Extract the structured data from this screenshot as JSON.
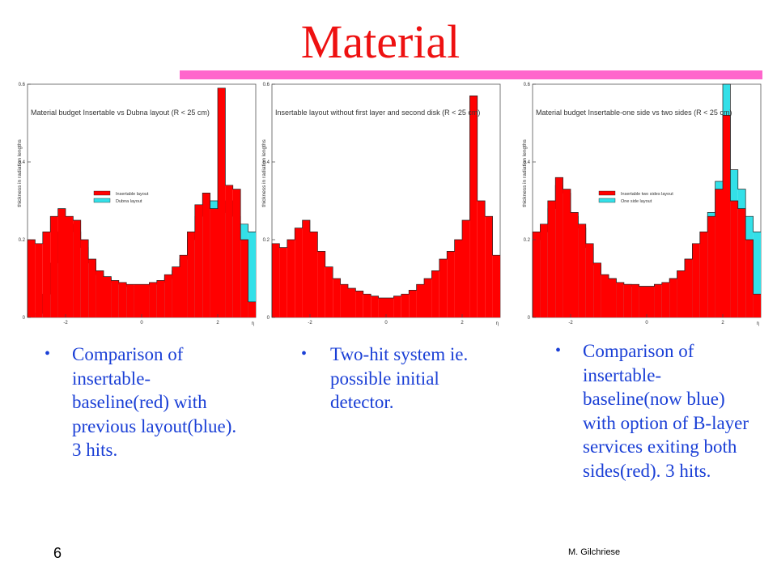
{
  "slide": {
    "title": "Material",
    "page_number": "6",
    "author": "M. Gilchriese",
    "bullets": [
      "Comparison of insertable-baseline(red) with previous layout(blue). 3 hits.",
      "Two-hit system ie. possible initial detector.",
      "Comparison of insertable-baseline(now blue) with option of B-layer services exiting both sides(red). 3 hits."
    ]
  },
  "colors": {
    "red": "#ff0000",
    "blue": "#33e0e8",
    "title": "#ee1111",
    "rule": "#ff66cc",
    "bullet_text": "#1a3fd6"
  },
  "chart_data": [
    {
      "type": "histogram",
      "title": "Material budget Insertable vs Dubna layout (R < 25 cm)",
      "ylabel": "thickness in radiation lengths",
      "xlabel": "η",
      "xlim": [
        -3,
        3
      ],
      "ylim": [
        0,
        0.6
      ],
      "x_ticks": [
        "-2",
        "0",
        "2"
      ],
      "y_ticks": [
        "0",
        "0.2",
        "0.4",
        "0.6"
      ],
      "legend_position": "center-left",
      "series": [
        {
          "name": "Insertable layout",
          "color": "red",
          "x": [
            -2.9,
            -2.7,
            -2.5,
            -2.3,
            -2.1,
            -1.9,
            -1.7,
            -1.5,
            -1.3,
            -1.1,
            -0.9,
            -0.7,
            -0.5,
            -0.3,
            -0.1,
            0.1,
            0.3,
            0.5,
            0.7,
            0.9,
            1.1,
            1.3,
            1.5,
            1.7,
            1.9,
            2.1,
            2.3,
            2.5,
            2.7,
            2.9
          ],
          "values": [
            0.2,
            0.19,
            0.22,
            0.26,
            0.28,
            0.26,
            0.25,
            0.2,
            0.15,
            0.12,
            0.105,
            0.095,
            0.09,
            0.085,
            0.085,
            0.085,
            0.09,
            0.095,
            0.11,
            0.13,
            0.16,
            0.22,
            0.29,
            0.32,
            0.28,
            0.59,
            0.34,
            0.33,
            0.2,
            0.04
          ]
        },
        {
          "name": "Dubna layout",
          "color": "blue",
          "x": [
            -2.9,
            -2.7,
            -2.5,
            -2.3,
            -2.1,
            -1.9,
            -1.7,
            -1.5,
            -1.3,
            -1.1,
            -0.9,
            -0.7,
            -0.5,
            -0.3,
            -0.1,
            0.1,
            0.3,
            0.5,
            0.7,
            0.9,
            1.1,
            1.3,
            1.5,
            1.7,
            1.9,
            2.1,
            2.3,
            2.5,
            2.7,
            2.9
          ],
          "values": [
            0.01,
            0.01,
            0.06,
            0.14,
            0.22,
            0.24,
            0.22,
            0.18,
            0.14,
            0.11,
            0.1,
            0.09,
            0.085,
            0.08,
            0.08,
            0.08,
            0.085,
            0.09,
            0.1,
            0.12,
            0.15,
            0.2,
            0.26,
            0.29,
            0.3,
            0.27,
            0.3,
            0.26,
            0.24,
            0.22
          ]
        }
      ]
    },
    {
      "type": "histogram",
      "title": "Insertable layout without first layer and second disk (R < 25 cm)",
      "ylabel": "thickness in radiation lengths",
      "xlabel": "η",
      "xlim": [
        -3,
        3
      ],
      "ylim": [
        0,
        0.6
      ],
      "x_ticks": [
        "-2",
        "0",
        "2"
      ],
      "y_ticks": [
        "0",
        "0.2",
        "0.4",
        "0.6"
      ],
      "series": [
        {
          "name": "",
          "color": "red",
          "x": [
            -2.9,
            -2.7,
            -2.5,
            -2.3,
            -2.1,
            -1.9,
            -1.7,
            -1.5,
            -1.3,
            -1.1,
            -0.9,
            -0.7,
            -0.5,
            -0.3,
            -0.1,
            0.1,
            0.3,
            0.5,
            0.7,
            0.9,
            1.1,
            1.3,
            1.5,
            1.7,
            1.9,
            2.1,
            2.3,
            2.5,
            2.7,
            2.9
          ],
          "values": [
            0.19,
            0.18,
            0.2,
            0.23,
            0.25,
            0.22,
            0.17,
            0.13,
            0.1,
            0.085,
            0.075,
            0.068,
            0.06,
            0.055,
            0.05,
            0.05,
            0.055,
            0.06,
            0.07,
            0.085,
            0.1,
            0.12,
            0.15,
            0.17,
            0.2,
            0.25,
            0.57,
            0.3,
            0.26,
            0.16
          ]
        }
      ]
    },
    {
      "type": "histogram",
      "title": "Material budget Insertable-one side vs two sides (R < 25 cm)",
      "ylabel": "thickness in radiation lengths",
      "xlabel": "η",
      "xlim": [
        -3,
        3
      ],
      "ylim": [
        0,
        0.6
      ],
      "x_ticks": [
        "-2",
        "0",
        "2"
      ],
      "y_ticks": [
        "0",
        "0.2",
        "0.4",
        "0.6"
      ],
      "legend_position": "center-left",
      "series": [
        {
          "name": "Insertable two sides layout",
          "color": "red",
          "x": [
            -2.9,
            -2.7,
            -2.5,
            -2.3,
            -2.1,
            -1.9,
            -1.7,
            -1.5,
            -1.3,
            -1.1,
            -0.9,
            -0.7,
            -0.5,
            -0.3,
            -0.1,
            0.1,
            0.3,
            0.5,
            0.7,
            0.9,
            1.1,
            1.3,
            1.5,
            1.7,
            1.9,
            2.1,
            2.3,
            2.5,
            2.7,
            2.9
          ],
          "values": [
            0.22,
            0.24,
            0.3,
            0.36,
            0.33,
            0.27,
            0.24,
            0.19,
            0.14,
            0.11,
            0.1,
            0.09,
            0.085,
            0.085,
            0.08,
            0.08,
            0.085,
            0.09,
            0.1,
            0.12,
            0.15,
            0.19,
            0.22,
            0.26,
            0.33,
            0.52,
            0.3,
            0.28,
            0.2,
            0.06
          ]
        },
        {
          "name": "One side layout",
          "color": "blue",
          "x": [
            -2.9,
            -2.7,
            -2.5,
            -2.3,
            -2.1,
            -1.9,
            -1.7,
            -1.5,
            -1.3,
            -1.1,
            -0.9,
            -0.7,
            -0.5,
            -0.3,
            -0.1,
            0.1,
            0.3,
            0.5,
            0.7,
            0.9,
            1.1,
            1.3,
            1.5,
            1.7,
            1.9,
            2.1,
            2.3,
            2.5,
            2.7,
            2.9
          ],
          "values": [
            0.2,
            0.22,
            0.28,
            0.34,
            0.32,
            0.26,
            0.23,
            0.18,
            0.135,
            0.11,
            0.1,
            0.09,
            0.085,
            0.08,
            0.08,
            0.08,
            0.085,
            0.09,
            0.1,
            0.12,
            0.15,
            0.19,
            0.22,
            0.27,
            0.35,
            0.6,
            0.38,
            0.33,
            0.26,
            0.22
          ]
        }
      ]
    }
  ]
}
